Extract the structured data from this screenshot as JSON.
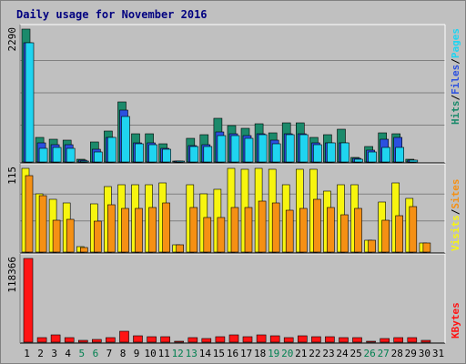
{
  "title": "Daily usage for November 2016",
  "colors": {
    "hits": "#1b8a6b",
    "files": "#2b50e0",
    "pages": "#1fd4f0",
    "visits": "#f7f50f",
    "sites": "#f59014",
    "kbytes": "#ff1414",
    "weekday_label": "#000000",
    "weekend_label": "#008050"
  },
  "legend": {
    "panel1": [
      {
        "text": "Hits",
        "color": "#1b8a6b"
      },
      {
        "text": "/",
        "color": "#000000"
      },
      {
        "text": "Files",
        "color": "#2b50e0"
      },
      {
        "text": "/",
        "color": "#000000"
      },
      {
        "text": "Pages",
        "color": "#1fd4f0"
      }
    ],
    "panel2": [
      {
        "text": "Visits",
        "color": "#f7f50f"
      },
      {
        "text": "/",
        "color": "#000000"
      },
      {
        "text": "Sites",
        "color": "#f59014"
      }
    ],
    "panel3": [
      {
        "text": "KBytes",
        "color": "#ff1414"
      }
    ]
  },
  "chart_data": {
    "type": "bar",
    "title": "Daily usage for November 2016",
    "categories": [
      "1",
      "2",
      "3",
      "4",
      "5",
      "6",
      "7",
      "8",
      "9",
      "10",
      "11",
      "12",
      "13",
      "14",
      "15",
      "16",
      "17",
      "18",
      "19",
      "20",
      "21",
      "22",
      "23",
      "24",
      "25",
      "26",
      "27",
      "28",
      "29",
      "30",
      "31"
    ],
    "weekend_days": [
      5,
      6,
      12,
      13,
      19,
      20,
      26,
      27
    ],
    "panels": [
      {
        "max_label": "2290",
        "ylim": [
          0,
          2290
        ],
        "series": [
          {
            "name": "Hits",
            "values": [
              2290,
              430,
              390,
              380,
              40,
              340,
              530,
              1030,
              490,
              480,
              320,
              20,
              400,
              470,
              750,
              630,
              580,
              660,
              500,
              680,
              670,
              430,
              470,
              560,
              80,
              260,
              500,
              480,
              40,
              0,
              0
            ]
          },
          {
            "name": "Files",
            "values": [
              2060,
              330,
              300,
              300,
              30,
              220,
              430,
              900,
              330,
              330,
              230,
              20,
              290,
              300,
              520,
              490,
              450,
              480,
              370,
              480,
              480,
              330,
              330,
              330,
              60,
              200,
              390,
              420,
              30,
              0,
              0
            ]
          },
          {
            "name": "Pages",
            "values": [
              2060,
              240,
              250,
              240,
              20,
              170,
              420,
              780,
              310,
              300,
              220,
              20,
              270,
              260,
              460,
              450,
              400,
              470,
              320,
              470,
              470,
              300,
              330,
              330,
              50,
              170,
              250,
              250,
              30,
              0,
              0
            ]
          }
        ]
      },
      {
        "max_label": "115",
        "ylim": [
          0,
          115
        ],
        "series": [
          {
            "name": "Visits",
            "values": [
              115,
              80,
              72,
              68,
              7,
              66,
              90,
              92,
              92,
              92,
              95,
              10,
              92,
              80,
              86,
              115,
              114,
              115,
              114,
              92,
              114,
              114,
              84,
              92,
              92,
              16,
              69,
              95,
              74,
              12,
              0
            ]
          },
          {
            "name": "Sites",
            "values": [
              105,
              77,
              44,
              45,
              6,
              43,
              65,
              60,
              60,
              61,
              68,
              10,
              61,
              48,
              48,
              61,
              61,
              70,
              68,
              57,
              60,
              73,
              61,
              51,
              60,
              16,
              44,
              50,
              63,
              12,
              0
            ]
          }
        ]
      },
      {
        "max_label": "118366",
        "ylim": [
          0,
          118366
        ],
        "series": [
          {
            "name": "KBytes",
            "values": [
              118366,
              6000,
              10000,
              6500,
              2500,
              3500,
              6500,
              16000,
              8500,
              8000,
              8000,
              1000,
              7000,
              5000,
              8000,
              10000,
              7500,
              10000,
              8500,
              7000,
              8500,
              8000,
              8000,
              7000,
              7000,
              1200,
              5500,
              6000,
              7000,
              2500,
              0
            ]
          }
        ]
      }
    ]
  }
}
